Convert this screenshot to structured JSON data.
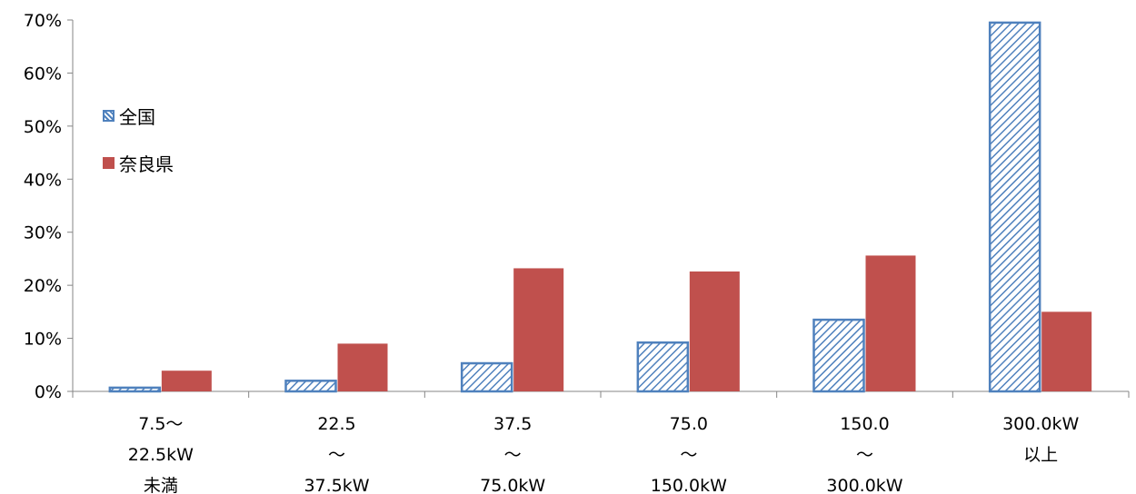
{
  "chart_data": {
    "type": "bar",
    "categories": [
      [
        "7.5〜",
        "22.5kW",
        "未満"
      ],
      [
        "22.5",
        "〜",
        "37.5kW"
      ],
      [
        "37.5",
        "〜",
        "75.0kW"
      ],
      [
        "75.0",
        "〜",
        "150.0kW"
      ],
      [
        "150.0",
        "〜",
        "300.0kW"
      ],
      [
        "300.0kW",
        "以上"
      ]
    ],
    "series": [
      {
        "name": "全国",
        "values": [
          0.7,
          2.0,
          5.3,
          9.2,
          13.5,
          69.5
        ],
        "color": "#4F81BD",
        "pattern": "hatched"
      },
      {
        "name": "奈良県",
        "values": [
          3.9,
          9.0,
          23.2,
          22.6,
          25.6,
          15.0
        ],
        "color": "#C0504D",
        "pattern": "solid"
      }
    ],
    "ylim": [
      0,
      70
    ],
    "yticks": [
      "0%",
      "10%",
      "20%",
      "30%",
      "40%",
      "50%",
      "60%",
      "70%"
    ],
    "legend_position": "left",
    "grid": false
  }
}
